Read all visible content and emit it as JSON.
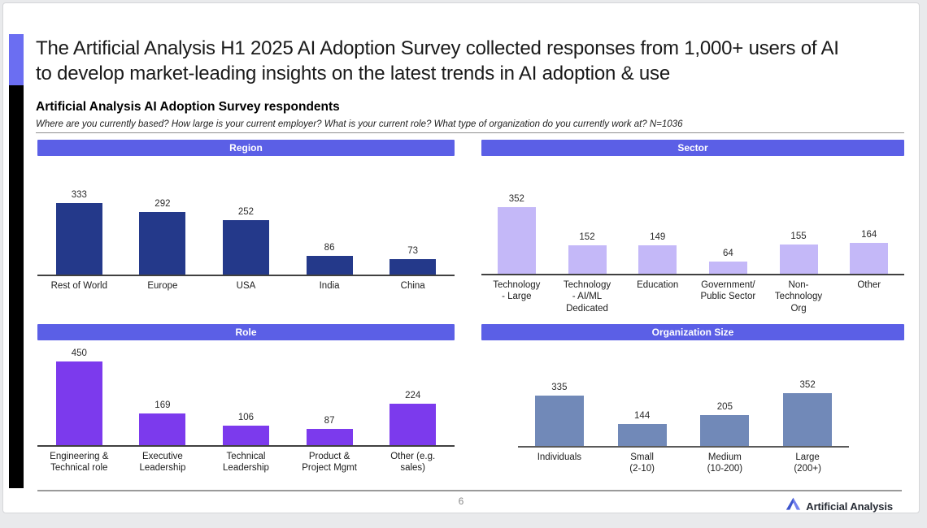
{
  "slide": {
    "title": "The Artificial Analysis H1 2025 AI Adoption Survey collected responses from 1,000+ users of AI to develop market-leading insights on the latest trends in AI adoption & use",
    "subtitle": "Artificial Analysis AI Adoption Survey respondents",
    "question_line": "Where are you currently based? How large is your current employer? What is your current role? What type of organization do you currently work at? N=1036",
    "page_number": "6",
    "logo_text": "Artificial Analysis"
  },
  "colors": {
    "section_header": "#5b5fe6",
    "accent_bar": "#6b6ef2",
    "region_bars": "#24398a",
    "sector_bars": "#c4b8f8",
    "role_bars": "#7c3aed",
    "org_bars": "#7189b8"
  },
  "chart_data": [
    {
      "type": "bar",
      "title": "Region",
      "bar_color": "#24398a",
      "categories": [
        "Rest of World",
        "Europe",
        "USA",
        "India",
        "China"
      ],
      "values": [
        333,
        292,
        252,
        86,
        73
      ],
      "legend": "none",
      "grid": false,
      "value_labels": true
    },
    {
      "type": "bar",
      "title": "Sector",
      "bar_color": "#c4b8f8",
      "categories": [
        "Technology\n- Large",
        "Technology\n- AI/ML\nDedicated",
        "Education",
        "Government/\nPublic Sector",
        "Non-\nTechnology\nOrg",
        "Other"
      ],
      "values": [
        352,
        152,
        149,
        64,
        155,
        164
      ],
      "legend": "none",
      "grid": false,
      "value_labels": true
    },
    {
      "type": "bar",
      "title": "Role",
      "bar_color": "#7c3aed",
      "categories": [
        "Engineering &\nTechnical role",
        "Executive\nLeadership",
        "Technical\nLeadership",
        "Product &\nProject Mgmt",
        "Other (e.g.\nsales)"
      ],
      "values": [
        450,
        169,
        106,
        87,
        224
      ],
      "legend": "none",
      "grid": false,
      "value_labels": true
    },
    {
      "type": "bar",
      "title": "Organization Size",
      "bar_color": "#7189b8",
      "categories": [
        "Individuals",
        "Small\n(2-10)",
        "Medium\n(10-200)",
        "Large\n(200+)"
      ],
      "values": [
        335,
        144,
        205,
        352
      ],
      "legend": "none",
      "grid": false,
      "value_labels": true
    }
  ]
}
